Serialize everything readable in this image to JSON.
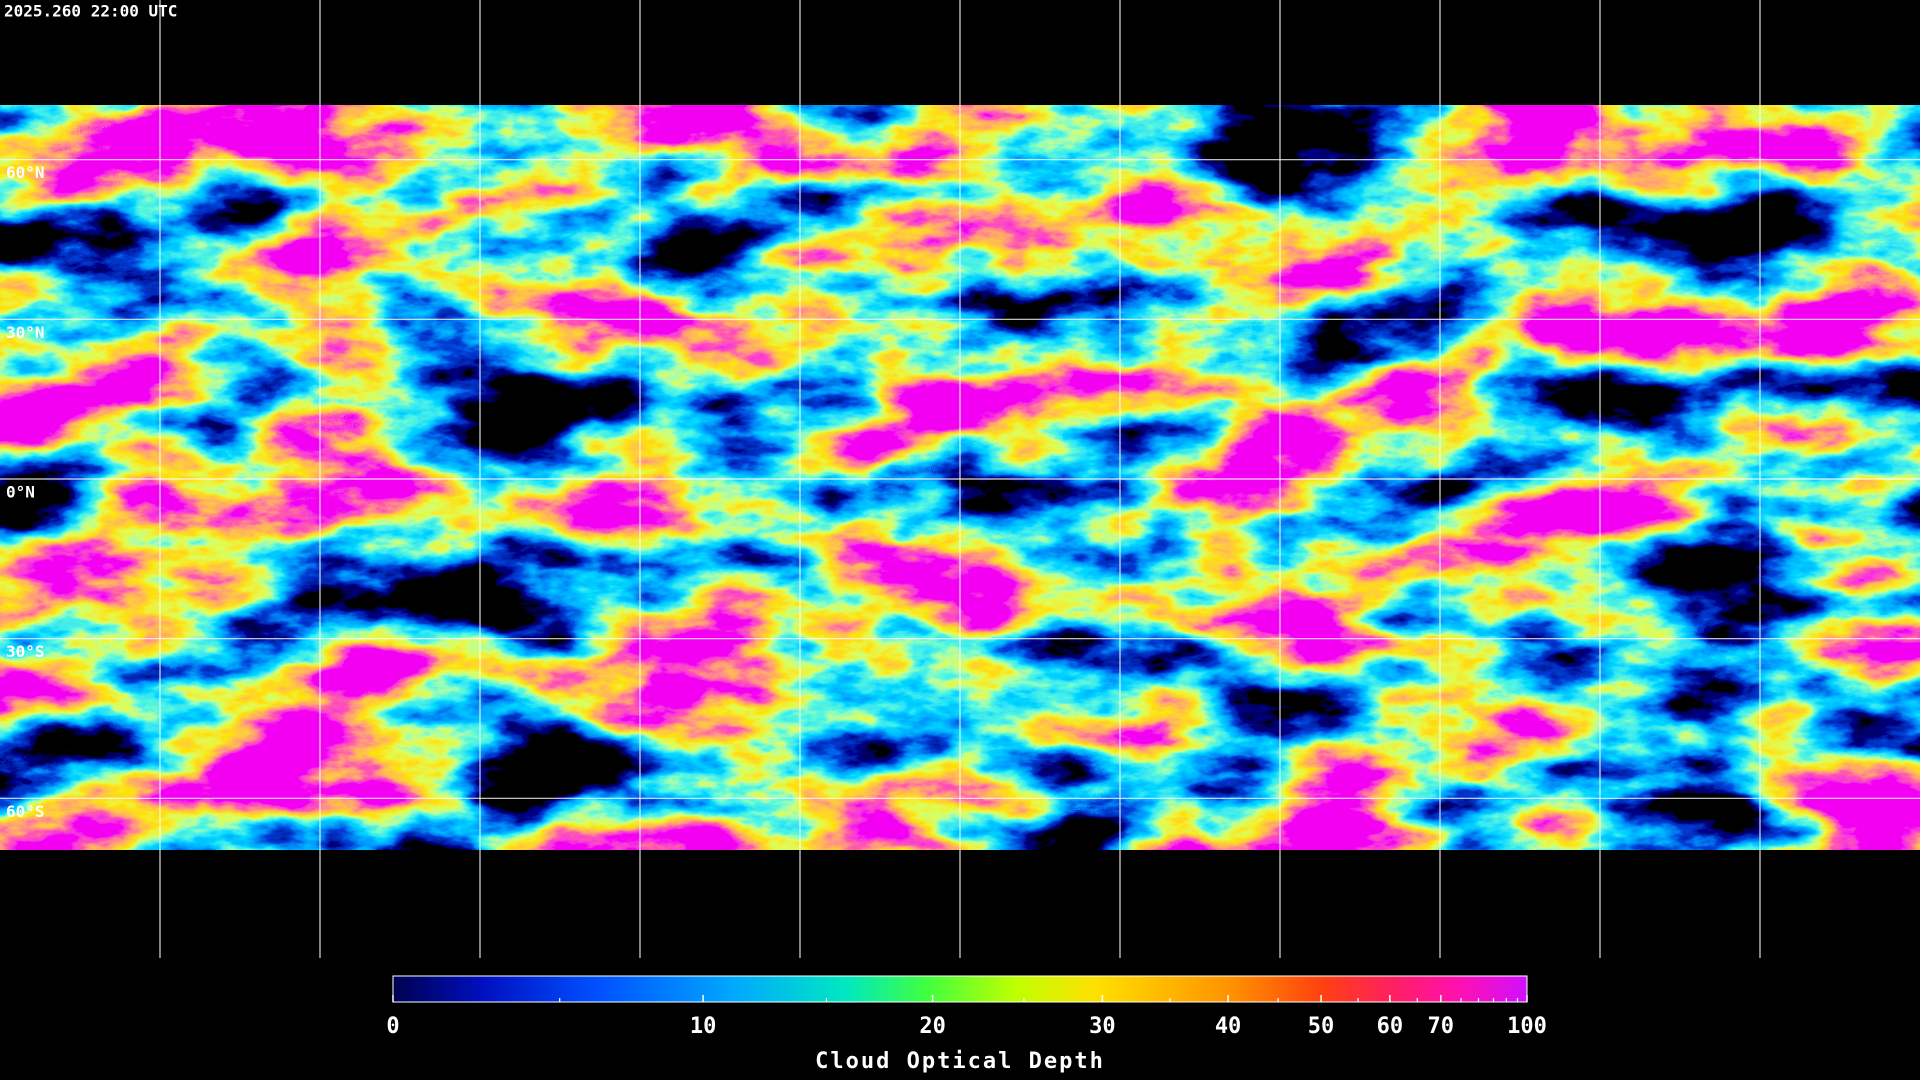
{
  "timestamp": "2025.260 22:00 UTC",
  "latitude_labels": [
    "60°N",
    "30°N",
    "0°N",
    "30°S",
    "60°S"
  ],
  "colorbar": {
    "title": "Cloud Optical Depth",
    "limits": [
      0,
      100
    ],
    "ticks": [
      0,
      10,
      20,
      30,
      40,
      50,
      60,
      70,
      100
    ],
    "minor_ticks": [
      5,
      15,
      25,
      35,
      45,
      55,
      65,
      75,
      80,
      85,
      90,
      95
    ]
  }
}
